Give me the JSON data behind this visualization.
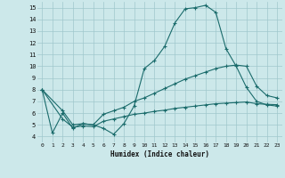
{
  "xlabel": "Humidex (Indice chaleur)",
  "bg_color": "#cce8ea",
  "grid_color": "#a0c8cc",
  "line_color": "#1a6b6b",
  "xlim": [
    -0.5,
    23.5
  ],
  "ylim": [
    3.5,
    15.5
  ],
  "yticks": [
    4,
    5,
    6,
    7,
    8,
    9,
    10,
    11,
    12,
    13,
    14,
    15
  ],
  "xticks": [
    0,
    1,
    2,
    3,
    4,
    5,
    6,
    7,
    8,
    9,
    10,
    11,
    12,
    13,
    14,
    15,
    16,
    17,
    18,
    19,
    20,
    21,
    22,
    23
  ],
  "line1_x": [
    0,
    1,
    2,
    3,
    4,
    5,
    6,
    7,
    8,
    9,
    10,
    11,
    12,
    13,
    14,
    15,
    16,
    17,
    18,
    19,
    20,
    21,
    22,
    23
  ],
  "line1_y": [
    8.0,
    4.3,
    6.0,
    4.7,
    5.1,
    5.0,
    4.7,
    4.2,
    5.1,
    6.6,
    9.8,
    10.5,
    11.7,
    13.7,
    14.9,
    15.0,
    15.2,
    14.6,
    11.5,
    10.0,
    8.2,
    7.0,
    6.7,
    6.6
  ],
  "line2_x": [
    0,
    2,
    3,
    4,
    5,
    6,
    7,
    8,
    9,
    10,
    11,
    12,
    13,
    14,
    15,
    16,
    17,
    18,
    19,
    20,
    21,
    22,
    23
  ],
  "line2_y": [
    8.0,
    6.2,
    5.0,
    5.1,
    5.0,
    5.9,
    6.2,
    6.5,
    7.0,
    7.3,
    7.7,
    8.1,
    8.5,
    8.9,
    9.2,
    9.5,
    9.8,
    10.0,
    10.1,
    10.0,
    8.3,
    7.5,
    7.3
  ],
  "line3_x": [
    0,
    2,
    3,
    4,
    5,
    6,
    7,
    8,
    9,
    10,
    11,
    12,
    13,
    14,
    15,
    16,
    17,
    18,
    19,
    20,
    21,
    22,
    23
  ],
  "line3_y": [
    8.0,
    5.5,
    4.8,
    4.9,
    4.85,
    5.3,
    5.5,
    5.7,
    5.9,
    6.0,
    6.15,
    6.25,
    6.4,
    6.5,
    6.6,
    6.7,
    6.8,
    6.85,
    6.9,
    6.95,
    6.8,
    6.75,
    6.72
  ]
}
